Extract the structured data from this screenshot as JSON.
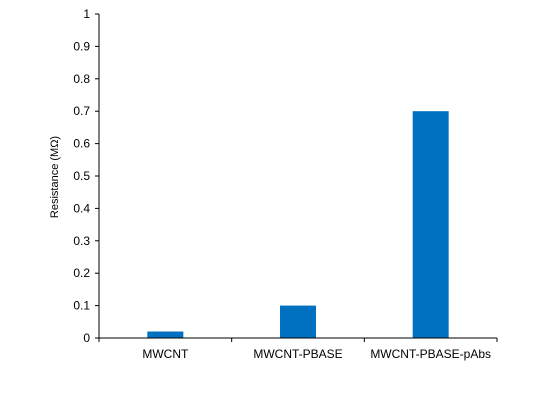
{
  "chart_data": {
    "type": "bar",
    "categories": [
      "MWCNT",
      "MWCNT-PBASE",
      "MWCNT-PBASE-pAbs"
    ],
    "values": [
      0.02,
      0.1,
      0.7
    ],
    "title": "",
    "xlabel": "",
    "ylabel": "Resistance (MΩ)",
    "ylim": [
      0,
      1
    ],
    "yticks": [
      "0",
      "0.1",
      "0.2",
      "0.3",
      "0.4",
      "0.5",
      "0.6",
      "0.7",
      "0.8",
      "0.9",
      "1"
    ],
    "bar_color": "#0070C0",
    "grid": false,
    "legend": "none"
  }
}
